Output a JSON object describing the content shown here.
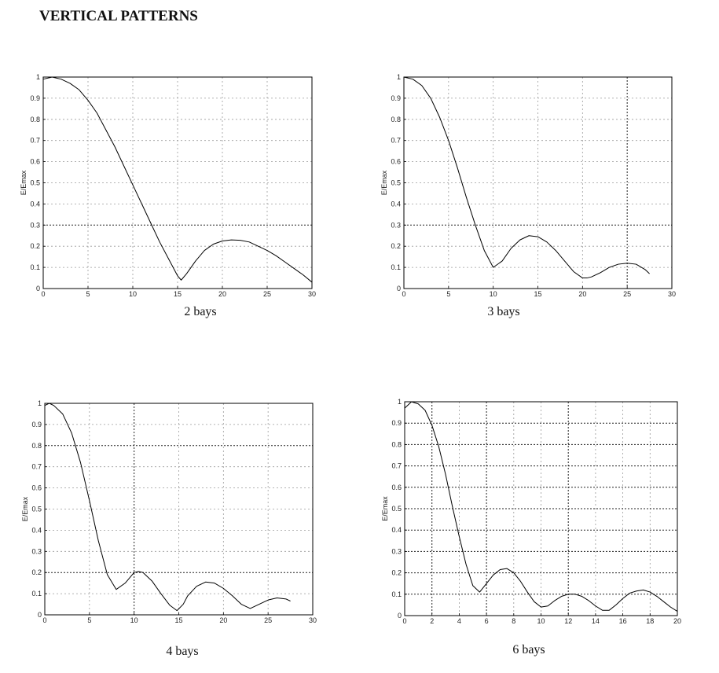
{
  "page": {
    "title": "VERTICAL PATTERNS"
  },
  "chart_data": [
    {
      "type": "line",
      "caption": "2 bays",
      "ylabel": "E/Emax",
      "xlim": [
        0,
        30
      ],
      "ylim": [
        0,
        1
      ],
      "xticks": [
        0,
        5,
        10,
        15,
        20,
        25,
        30
      ],
      "yticks": [
        0,
        0.1,
        0.2,
        0.3,
        0.4,
        0.5,
        0.6,
        0.7,
        0.8,
        0.9,
        1
      ],
      "grid": true,
      "x": [
        0,
        1,
        2,
        3,
        4,
        5,
        6,
        7,
        8,
        9,
        10,
        11,
        12,
        13,
        14,
        15,
        15.4,
        16,
        17,
        18,
        19,
        20,
        21,
        22,
        23,
        24,
        25,
        26,
        27,
        28,
        29,
        30
      ],
      "y": [
        0.99,
        1.0,
        0.99,
        0.97,
        0.94,
        0.89,
        0.83,
        0.75,
        0.67,
        0.58,
        0.49,
        0.4,
        0.31,
        0.22,
        0.14,
        0.06,
        0.04,
        0.07,
        0.13,
        0.18,
        0.21,
        0.225,
        0.23,
        0.228,
        0.22,
        0.2,
        0.18,
        0.155,
        0.125,
        0.095,
        0.065,
        0.03
      ]
    },
    {
      "type": "line",
      "caption": "3 bays",
      "ylabel": "E/Emax",
      "xlim": [
        0,
        30
      ],
      "ylim": [
        0,
        1
      ],
      "xticks": [
        0,
        5,
        10,
        15,
        20,
        25,
        30
      ],
      "yticks": [
        0,
        0.1,
        0.2,
        0.3,
        0.4,
        0.5,
        0.6,
        0.7,
        0.8,
        0.9,
        1
      ],
      "grid": true,
      "x": [
        0,
        1,
        2,
        3,
        4,
        5,
        6,
        7,
        8,
        9,
        10,
        11,
        12,
        13,
        14,
        15,
        16,
        17,
        18,
        19,
        20,
        20.5,
        21,
        22,
        23,
        24,
        25,
        26,
        27,
        27.5
      ],
      "y": [
        1.0,
        0.99,
        0.96,
        0.9,
        0.81,
        0.7,
        0.57,
        0.43,
        0.3,
        0.18,
        0.1,
        0.13,
        0.19,
        0.23,
        0.25,
        0.245,
        0.22,
        0.18,
        0.13,
        0.08,
        0.05,
        0.05,
        0.055,
        0.075,
        0.1,
        0.115,
        0.12,
        0.115,
        0.09,
        0.07
      ]
    },
    {
      "type": "line",
      "caption": "4 bays",
      "ylabel": "E/Emax",
      "xlim": [
        0,
        30
      ],
      "ylim": [
        0,
        1
      ],
      "xticks": [
        0,
        5,
        10,
        15,
        20,
        25,
        30
      ],
      "yticks": [
        0,
        0.1,
        0.2,
        0.3,
        0.4,
        0.5,
        0.6,
        0.7,
        0.8,
        0.9,
        1
      ],
      "grid": true,
      "x": [
        0,
        0.5,
        1,
        2,
        3,
        4,
        5,
        6,
        7,
        8,
        9,
        10,
        10.5,
        11,
        12,
        13,
        14,
        14.8,
        15.5,
        16,
        17,
        18,
        19,
        20,
        21,
        22,
        23,
        24,
        25,
        26,
        27,
        27.5
      ],
      "y": [
        0.99,
        1.0,
        0.99,
        0.95,
        0.86,
        0.72,
        0.54,
        0.35,
        0.19,
        0.12,
        0.15,
        0.2,
        0.205,
        0.2,
        0.16,
        0.1,
        0.045,
        0.02,
        0.05,
        0.09,
        0.135,
        0.155,
        0.15,
        0.125,
        0.09,
        0.05,
        0.03,
        0.05,
        0.07,
        0.08,
        0.075,
        0.065
      ]
    },
    {
      "type": "line",
      "caption": "6 bays",
      "ylabel": "E/Emax",
      "xlim": [
        0,
        20
      ],
      "ylim": [
        0,
        1
      ],
      "xticks": [
        0,
        2,
        4,
        6,
        8,
        10,
        12,
        14,
        16,
        18,
        20
      ],
      "yticks": [
        0,
        0.1,
        0.2,
        0.3,
        0.4,
        0.5,
        0.6,
        0.7,
        0.8,
        0.9,
        1
      ],
      "grid": true,
      "x": [
        0,
        0.5,
        1,
        1.5,
        2,
        2.5,
        3,
        3.5,
        4,
        4.5,
        5,
        5.5,
        6,
        6.5,
        7,
        7.5,
        8,
        8.5,
        9,
        9.5,
        10,
        10.5,
        11,
        11.5,
        12,
        12.5,
        13,
        13.5,
        14,
        14.5,
        15,
        15.5,
        16,
        16.5,
        17,
        17.5,
        18,
        18.5,
        19,
        19.5,
        20
      ],
      "y": [
        0.97,
        1.0,
        0.99,
        0.96,
        0.89,
        0.79,
        0.66,
        0.51,
        0.37,
        0.24,
        0.14,
        0.11,
        0.15,
        0.19,
        0.215,
        0.22,
        0.2,
        0.16,
        0.11,
        0.065,
        0.04,
        0.045,
        0.07,
        0.09,
        0.1,
        0.1,
        0.09,
        0.07,
        0.045,
        0.025,
        0.025,
        0.05,
        0.08,
        0.105,
        0.115,
        0.12,
        0.11,
        0.09,
        0.065,
        0.04,
        0.02
      ]
    }
  ]
}
